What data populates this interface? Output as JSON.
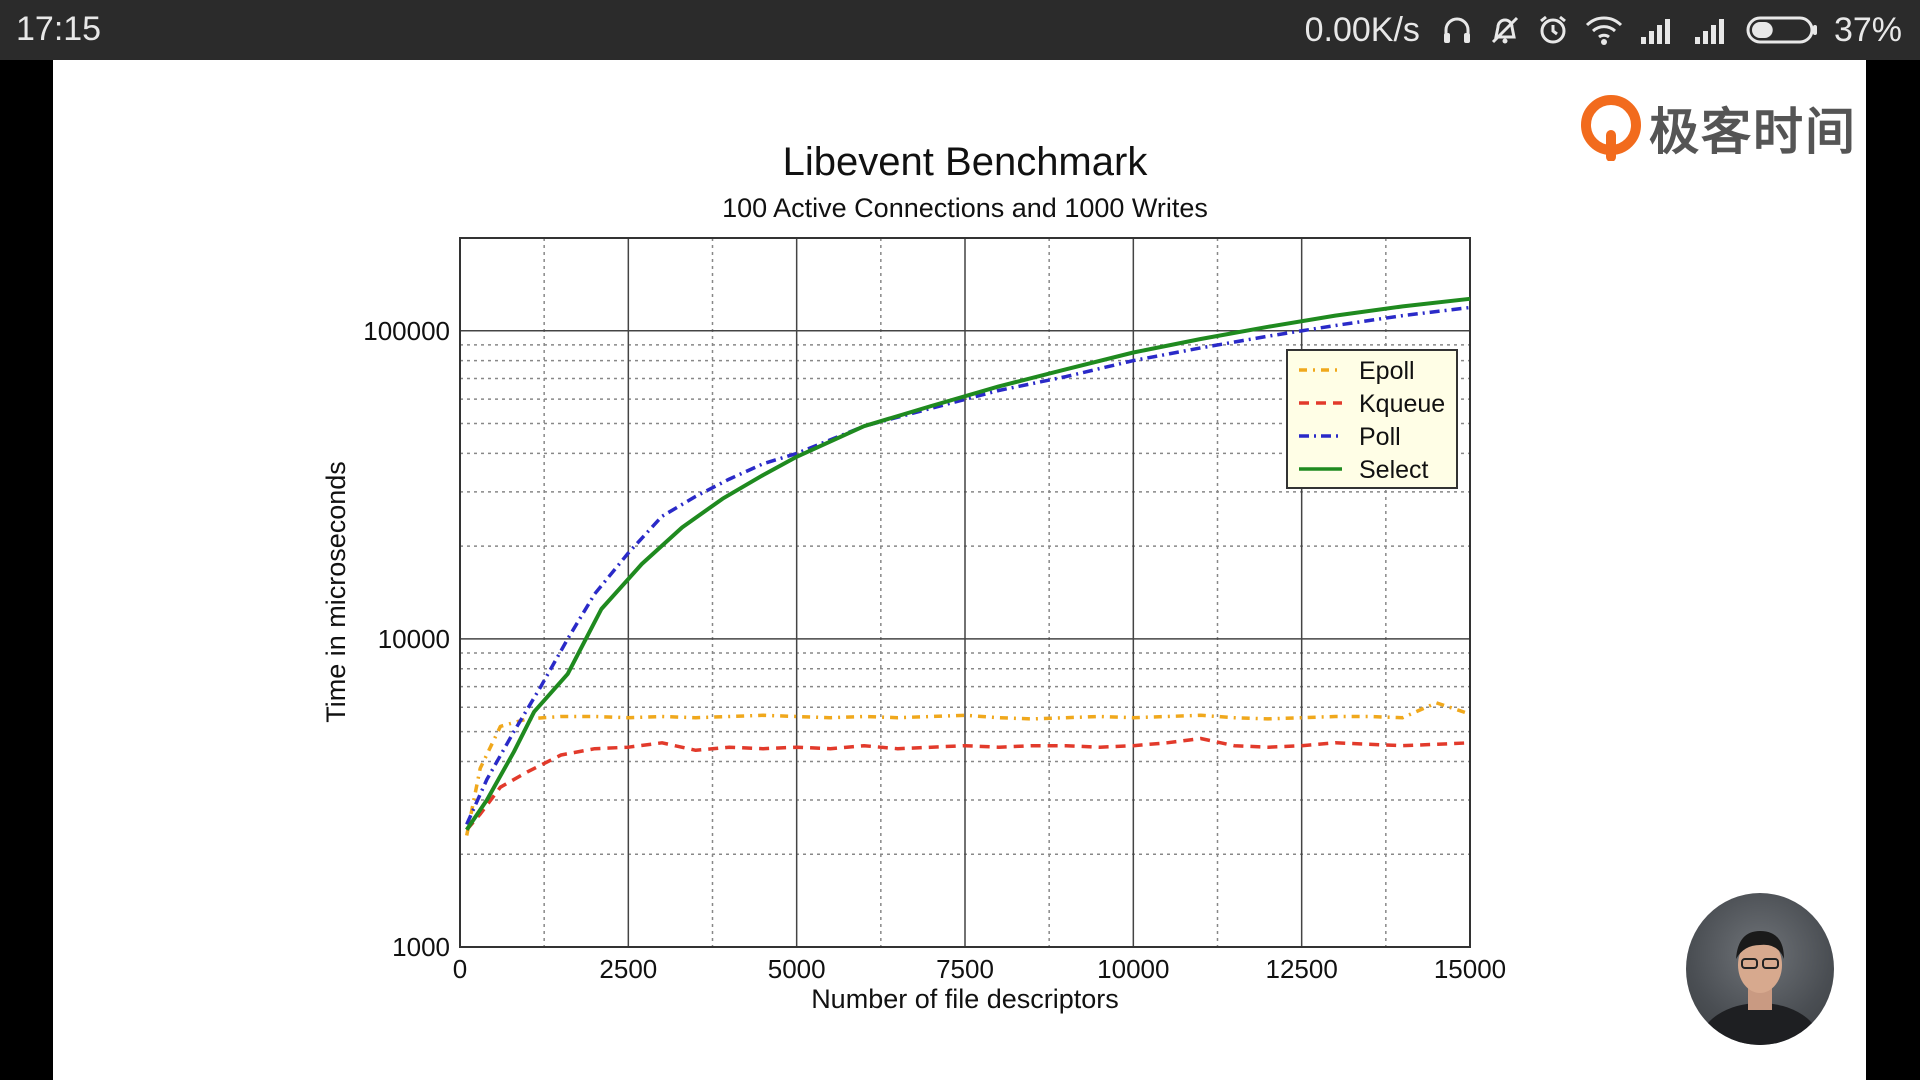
{
  "statusbar": {
    "time": "17:15",
    "network_speed": "0.00K/s",
    "battery_percent": "37%",
    "battery_level": 0.37,
    "icons": [
      "headphones-icon",
      "mute-icon",
      "alarm-icon",
      "wifi-icon",
      "signal-icon",
      "signal-icon",
      "battery-icon"
    ]
  },
  "logo": {
    "text": "极客时间",
    "accent": "#f26b1d"
  },
  "chart_data": {
    "type": "line",
    "title": "Libevent Benchmark",
    "subtitle": "100 Active Connections and 1000 Writes",
    "xlabel": "Number of file descriptors",
    "ylabel": "Time in microseconds",
    "xlim": [
      0,
      15000
    ],
    "ylim": [
      1000,
      200000
    ],
    "yscale": "log",
    "grid": true,
    "legend_position": "upper-right",
    "xticks": [
      "0",
      "2500",
      "5000",
      "7500",
      "10000",
      "12500",
      "15000"
    ],
    "xtick_values": [
      0,
      2500,
      5000,
      7500,
      10000,
      12500,
      15000
    ],
    "yticks": [
      "1000",
      "10000",
      "100000"
    ],
    "ytick_values": [
      1000,
      10000,
      100000
    ],
    "series": [
      {
        "name": "Epoll",
        "color": "#f0a81c",
        "dash": "8,6,2,6",
        "x": [
          100,
          300,
          600,
          1000,
          1500,
          2000,
          2500,
          3000,
          3500,
          4000,
          4500,
          5000,
          5500,
          6000,
          6500,
          7000,
          7500,
          8000,
          8500,
          9000,
          9500,
          10000,
          10500,
          11000,
          11500,
          12000,
          12500,
          13000,
          13500,
          14000,
          14500,
          15000
        ],
        "y": [
          2300,
          3800,
          5200,
          5500,
          5600,
          5600,
          5550,
          5600,
          5550,
          5600,
          5650,
          5600,
          5550,
          5600,
          5550,
          5600,
          5650,
          5550,
          5500,
          5550,
          5600,
          5550,
          5600,
          5650,
          5550,
          5500,
          5550,
          5600,
          5600,
          5550,
          6200,
          5700
        ]
      },
      {
        "name": "Kqueue",
        "color": "#e23a2b",
        "dash": "10,7",
        "x": [
          100,
          300,
          600,
          1000,
          1500,
          2000,
          2500,
          3000,
          3500,
          4000,
          4500,
          5000,
          5500,
          6000,
          6500,
          7000,
          7500,
          8000,
          8500,
          9000,
          9500,
          10000,
          10500,
          11000,
          11500,
          12000,
          12500,
          13000,
          13500,
          14000,
          14500,
          15000
        ],
        "y": [
          2400,
          2700,
          3300,
          3700,
          4200,
          4400,
          4450,
          4600,
          4350,
          4450,
          4400,
          4450,
          4400,
          4500,
          4400,
          4450,
          4500,
          4450,
          4500,
          4500,
          4450,
          4500,
          4600,
          4750,
          4500,
          4450,
          4500,
          4600,
          4550,
          4500,
          4550,
          4600
        ]
      },
      {
        "name": "Poll",
        "color": "#2a2ac8",
        "dash": "10,5,2,5",
        "x": [
          100,
          400,
          800,
          1200,
          1600,
          2000,
          2500,
          3000,
          3500,
          4000,
          4500,
          5000,
          6000,
          7000,
          8000,
          9000,
          10000,
          11000,
          12000,
          13000,
          14000,
          15000
        ],
        "y": [
          2500,
          3500,
          5000,
          7000,
          10000,
          14000,
          19000,
          25000,
          29000,
          33000,
          37000,
          40000,
          49000,
          56000,
          64000,
          71000,
          80000,
          88000,
          96000,
          104000,
          112000,
          119000
        ]
      },
      {
        "name": "Select",
        "color": "#1f8a1f",
        "dash": "",
        "x": [
          100,
          400,
          800,
          1100,
          1600,
          2100,
          2700,
          3300,
          3900,
          4500,
          5000,
          6000,
          7000,
          8000,
          9000,
          10000,
          11000,
          12000,
          13000,
          14000,
          15000
        ],
        "y": [
          2400,
          3000,
          4300,
          5800,
          7700,
          12500,
          17500,
          23000,
          28500,
          34000,
          39000,
          49000,
          57000,
          66000,
          75000,
          85000,
          94000,
          103000,
          112000,
          120000,
          127000
        ]
      }
    ]
  }
}
